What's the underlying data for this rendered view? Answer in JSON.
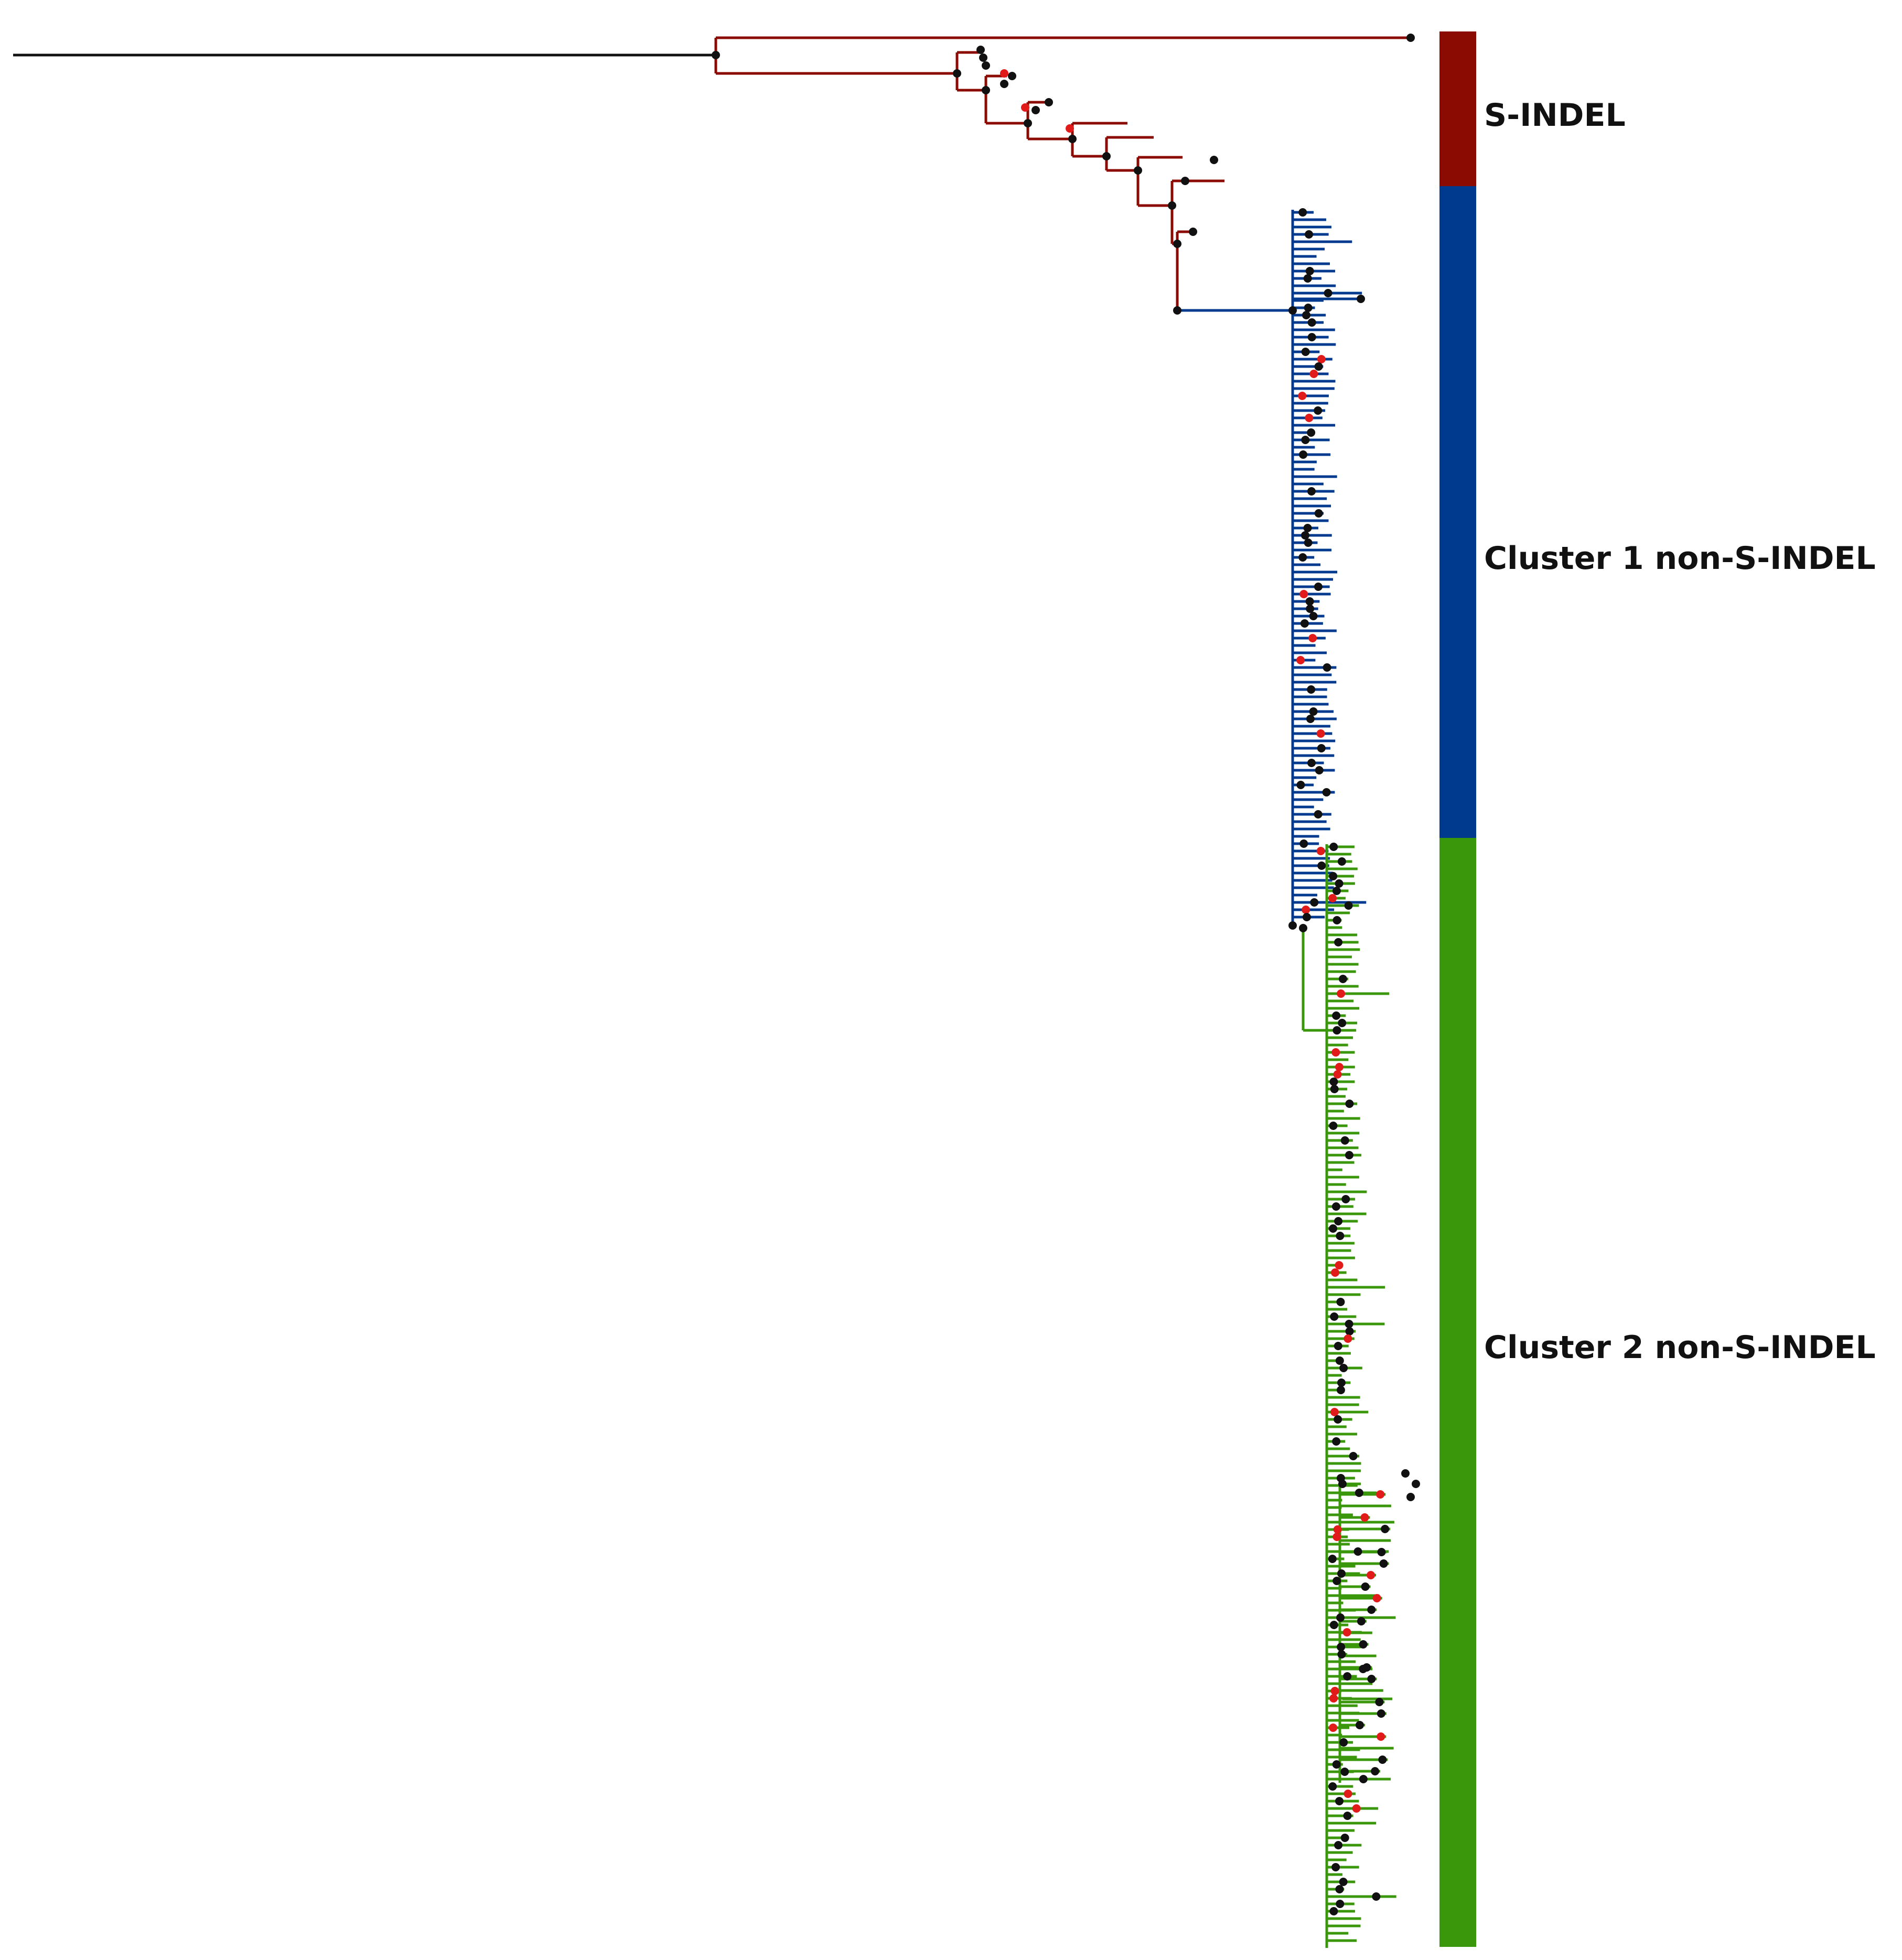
{
  "clusters": [
    {
      "id": "s-indel",
      "label": "S-INDEL",
      "color": "#8b0a02"
    },
    {
      "id": "cluster1",
      "label": "Cluster 1 non-S-INDEL",
      "color": "#003a8f"
    },
    {
      "id": "cluster2",
      "label": "Cluster 2  non-S-INDEL",
      "color": "#3a970c"
    }
  ],
  "colors": {
    "root_branch": "#111111",
    "node_black": "#111111",
    "node_red": "#e11a1a"
  }
}
